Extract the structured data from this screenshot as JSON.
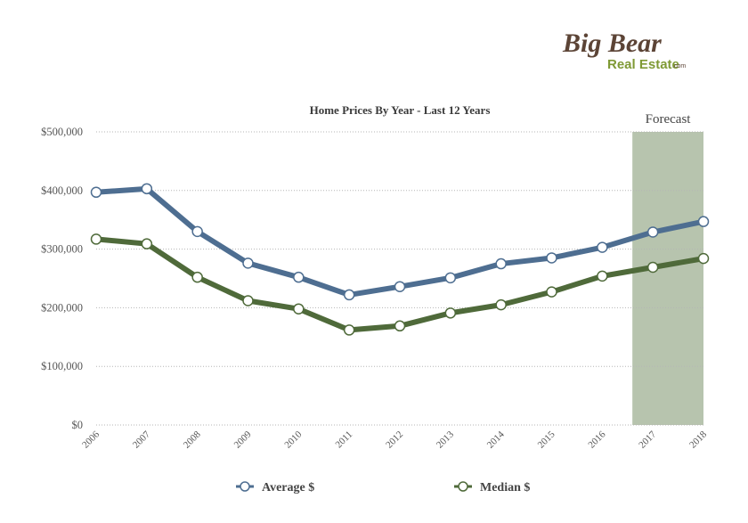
{
  "logo": {
    "line1": "Big Bear",
    "line2": "Real Estate",
    "suffix": ".com",
    "color_dark": "#5c4436",
    "color_green": "#7f9a35"
  },
  "chart_data": {
    "type": "line",
    "title": "Home Prices By Year - Last 12 Years",
    "x": [
      "2006",
      "2007",
      "2008",
      "2009",
      "2010",
      "2011",
      "2012",
      "2013",
      "2014",
      "2015",
      "2016",
      "2017",
      "2018"
    ],
    "series": [
      {
        "name": "Average $",
        "color": "#4e6e91",
        "values": [
          397000,
          403000,
          330000,
          276000,
          252000,
          222000,
          236000,
          251000,
          275000,
          285000,
          303000,
          329000,
          347000
        ]
      },
      {
        "name": "Median $",
        "color": "#4f6a3a",
        "values": [
          317000,
          309000,
          252000,
          212000,
          198000,
          162000,
          169000,
          191000,
          205000,
          227000,
          254000,
          269000,
          284000
        ]
      }
    ],
    "ylim": [
      0,
      500000
    ],
    "yticks": [
      0,
      100000,
      200000,
      300000,
      400000,
      500000
    ],
    "ytick_labels": [
      "$0",
      "$100,000",
      "$200,000",
      "$300,000",
      "$400,000",
      "$500,000"
    ],
    "grid": true,
    "legend_position": "bottom",
    "forecast": {
      "label": "Forecast",
      "from": "2017",
      "to": "2018",
      "color": "#b7c4ae"
    }
  }
}
